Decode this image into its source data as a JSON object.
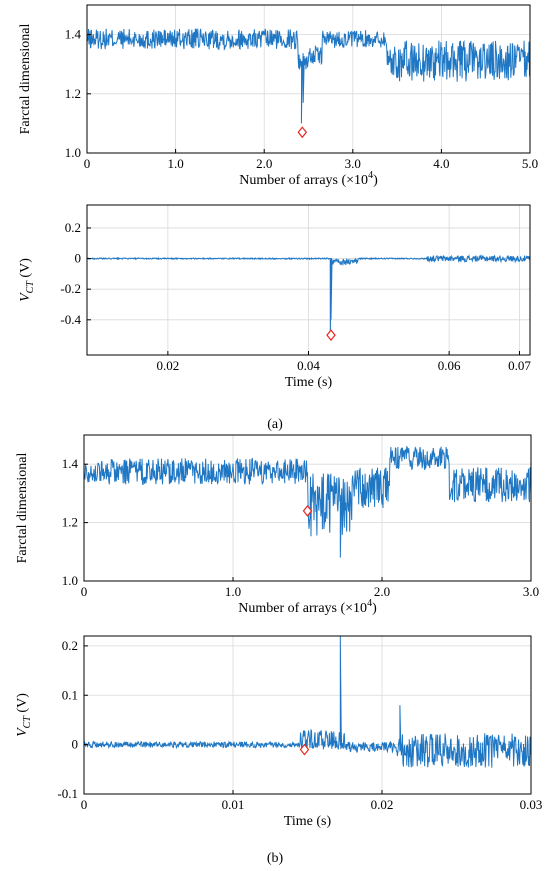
{
  "captions": [
    "(a)",
    "(b)"
  ],
  "colors": {
    "line": "#1f77c4",
    "marker": "#e8251d",
    "grid": "#d9d9d9",
    "axis": "#000000"
  },
  "chart_data": [
    {
      "id": "a1",
      "type": "line",
      "ylabel": "Farctal dimensional",
      "xlabel": "Number of arrays",
      "xlabel_multiplier": "(×10",
      "xlabel_exp": "4",
      "xlabel_close": ")",
      "xlim": [
        0,
        5.0
      ],
      "ylim": [
        1.0,
        1.5
      ],
      "xticks": [
        0,
        1.0,
        2.0,
        3.0,
        4.0,
        5.0
      ],
      "xtick_labels": [
        "0",
        "1.0",
        "2.0",
        "3.0",
        "4.0",
        "5.0"
      ],
      "yticks": [
        1.0,
        1.2,
        1.4
      ],
      "ytick_labels": [
        "1.0",
        "1.2",
        "1.4"
      ],
      "grid": true,
      "segments": [
        {
          "x0": 0.0,
          "x1": 2.38,
          "mean": 1.385,
          "amp": 0.035
        },
        {
          "x0": 2.38,
          "x1": 2.5,
          "mean": 1.31,
          "amp": 0.03
        },
        {
          "x0": 2.5,
          "x1": 2.65,
          "mean": 1.33,
          "amp": 0.03
        },
        {
          "x0": 2.65,
          "x1": 3.38,
          "mean": 1.385,
          "amp": 0.03
        },
        {
          "x0": 3.38,
          "x1": 5.0,
          "mean": 1.31,
          "amp": 0.07
        }
      ],
      "events": [
        {
          "x": 2.42,
          "y": 1.1
        },
        {
          "x": 2.44,
          "y": 1.17
        }
      ],
      "marker": {
        "x": 2.43,
        "y": 1.07
      }
    },
    {
      "id": "a2",
      "type": "line",
      "ylabel": "V",
      "ylabel_sub": "CT",
      "ylabel_unit": " (V)",
      "xlabel": "Time (s)",
      "xlim": [
        0.0085,
        0.0715
      ],
      "ylim": [
        -0.63,
        0.35
      ],
      "xticks": [
        0.02,
        0.04,
        0.06,
        0.07
      ],
      "xtick_labels": [
        "0.02",
        "0.04",
        "0.06",
        "0.07"
      ],
      "yticks": [
        -0.4,
        -0.2,
        0,
        0.2
      ],
      "ytick_labels": [
        "-0.4",
        "-0.2",
        "0",
        "0.2"
      ],
      "grid": true,
      "segments": [
        {
          "x0": 0.0085,
          "x1": 0.0432,
          "mean": 0.0,
          "amp": 0.004
        },
        {
          "x0": 0.0432,
          "x1": 0.047,
          "mean": -0.02,
          "amp": 0.02
        },
        {
          "x0": 0.047,
          "x1": 0.0568,
          "mean": 0.0,
          "amp": 0.004
        },
        {
          "x0": 0.0568,
          "x1": 0.0715,
          "mean": 0.0,
          "amp": 0.02
        }
      ],
      "events": [
        {
          "x": 0.0431,
          "y": -0.5
        },
        {
          "x": 0.0432,
          "y": -0.4
        }
      ],
      "marker": {
        "x": 0.0432,
        "y": -0.5
      }
    },
    {
      "id": "b1",
      "type": "line",
      "ylabel": "Farctal dimensional",
      "xlabel": "Number of arrays",
      "xlabel_multiplier": "(×10",
      "xlabel_exp": "4",
      "xlabel_close": ")",
      "xlim": [
        0,
        3.0
      ],
      "ylim": [
        1.0,
        1.5
      ],
      "xticks": [
        0,
        1.0,
        2.0,
        3.0
      ],
      "xtick_labels": [
        "0",
        "1.0",
        "2.0",
        "3.0"
      ],
      "yticks": [
        1.0,
        1.2,
        1.4
      ],
      "ytick_labels": [
        "1.0",
        "1.2",
        "1.4"
      ],
      "grid": true,
      "segments": [
        {
          "x0": 0.0,
          "x1": 1.5,
          "mean": 1.375,
          "amp": 0.045
        },
        {
          "x0": 1.5,
          "x1": 1.8,
          "mean": 1.26,
          "amp": 0.11
        },
        {
          "x0": 1.8,
          "x1": 2.05,
          "mean": 1.32,
          "amp": 0.07
        },
        {
          "x0": 2.05,
          "x1": 2.45,
          "mean": 1.42,
          "amp": 0.04
        },
        {
          "x0": 2.45,
          "x1": 3.0,
          "mean": 1.33,
          "amp": 0.06
        }
      ],
      "events": [
        {
          "x": 1.72,
          "y": 1.08
        }
      ],
      "marker": {
        "x": 1.5,
        "y": 1.24
      }
    },
    {
      "id": "b2",
      "type": "line",
      "ylabel": "V",
      "ylabel_sub": "CT",
      "ylabel_unit": " (V)",
      "xlabel": "Time (s)",
      "xlim": [
        0,
        0.03
      ],
      "ylim": [
        -0.1,
        0.22
      ],
      "xticks": [
        0,
        0.01,
        0.02,
        0.03
      ],
      "xtick_labels": [
        "0",
        "0.01",
        "0.02",
        "0.03"
      ],
      "yticks": [
        -0.1,
        0,
        0.1,
        0.2
      ],
      "ytick_labels": [
        "-0.1",
        "0",
        "0.1",
        "0.2"
      ],
      "grid": true,
      "segments": [
        {
          "x0": 0.0,
          "x1": 0.0145,
          "mean": 0.0,
          "amp": 0.006
        },
        {
          "x0": 0.0145,
          "x1": 0.0175,
          "mean": 0.01,
          "amp": 0.02
        },
        {
          "x0": 0.0175,
          "x1": 0.021,
          "mean": -0.005,
          "amp": 0.01
        },
        {
          "x0": 0.021,
          "x1": 0.03,
          "mean": -0.012,
          "amp": 0.035
        }
      ],
      "events": [
        {
          "x": 0.0172,
          "y": 0.22
        },
        {
          "x": 0.0212,
          "y": 0.08
        }
      ],
      "marker": {
        "x": 0.0148,
        "y": -0.01
      }
    }
  ]
}
